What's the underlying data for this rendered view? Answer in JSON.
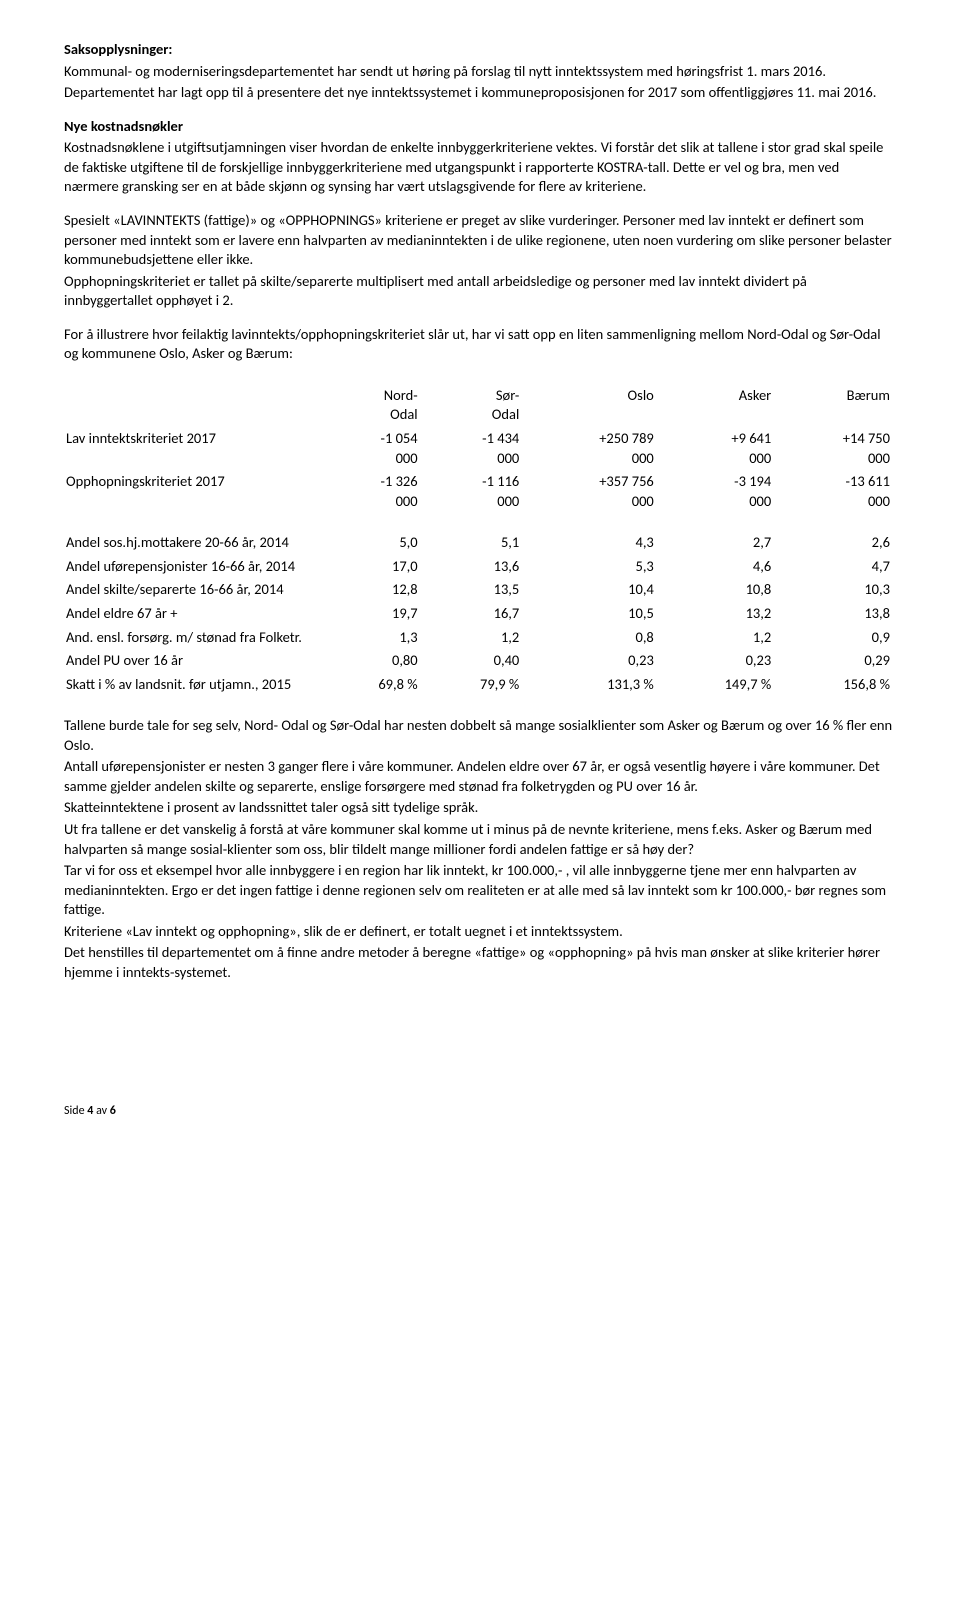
{
  "heading1": "Saksopplysninger:",
  "intro1": "Kommunal- og moderniseringsdepartementet har sendt ut høring på forslag til nytt inntektssystem med høringsfrist 1. mars 2016.",
  "intro2": "Departementet har lagt opp til å presentere det nye inntektssystemet i kommuneproposisjonen for 2017 som offentliggjøres 11. mai 2016.",
  "heading2": "Nye kostnadsnøkler",
  "para2a": "Kostnadsnøklene i utgiftsutjamningen viser hvordan de enkelte innbyggerkriteriene vektes. Vi forstår det slik at tallene i stor grad skal speile de faktiske utgiftene til de forskjellige innbyggerkriteriene med utgangspunkt i rapporterte KOSTRA-tall. Dette er vel og bra, men ved nærmere gransking ser en at både skjønn og synsing har vært utslagsgivende for flere av kriteriene.",
  "para3": "Spesielt «LAVINNTEKTS (fattige)» og «OPPHOPNINGS» kriteriene er preget av slike vurderinger. Personer med lav inntekt er definert som personer med inntekt som er lavere enn halvparten av medianinntekten i de ulike regionene, uten noen vurdering om slike personer belaster kommunebudsjettene eller ikke.",
  "para3b": "Opphopningskriteriet er tallet på skilte/separerte multiplisert med antall arbeidsledige og personer med lav inntekt dividert på innbyggertallet opphøyet i 2.",
  "para4": "For å illustrere hvor feilaktig lavinntekts/opphopningskriteriet slår ut, har vi satt opp en liten sammenligning mellom Nord-Odal og Sør-Odal og kommunene Oslo, Asker og Bærum:",
  "table": {
    "columns": [
      "",
      "Nord-\nOdal",
      "Sør-\nOdal",
      "Oslo",
      "Asker",
      "Bærum"
    ],
    "rows_top": [
      {
        "label": "Lav inntektskriteriet 2017",
        "vals": [
          "-1 054\n000",
          "-1 434\n000",
          "+250 789\n000",
          "+9 641\n000",
          "+14 750\n000"
        ]
      },
      {
        "label": "Opphopningskriteriet 2017",
        "vals": [
          "-1 326\n000",
          "-1 116\n000",
          "+357 756\n000",
          "-3 194\n000",
          "-13 611\n000"
        ]
      }
    ],
    "rows_bottom": [
      {
        "label": "Andel sos.hj.mottakere 20-66 år, 2014",
        "vals": [
          "5,0",
          "5,1",
          "4,3",
          "2,7",
          "2,6"
        ]
      },
      {
        "label": "Andel uførepensjonister 16-66 år, 2014",
        "vals": [
          "17,0",
          "13,6",
          "5,3",
          "4,6",
          "4,7"
        ]
      },
      {
        "label": "Andel skilte/separerte 16-66 år, 2014",
        "vals": [
          "12,8",
          "13,5",
          "10,4",
          "10,8",
          "10,3"
        ]
      },
      {
        "label": "Andel eldre 67 år +",
        "vals": [
          "19,7",
          "16,7",
          "10,5",
          "13,2",
          "13,8"
        ]
      },
      {
        "label": "And. ensl. forsørg. m/ stønad fra Folketr.",
        "vals": [
          "1,3",
          "1,2",
          "0,8",
          "1,2",
          "0,9"
        ]
      },
      {
        "label": "Andel PU over 16 år",
        "vals": [
          "0,80",
          "0,40",
          "0,23",
          "0,23",
          "0,29"
        ]
      },
      {
        "label": "Skatt i % av landsnit. før utjamn., 2015",
        "vals": [
          "69,8 %",
          "79,9 %",
          "131,3 %",
          "149,7 %",
          "156,8 %"
        ]
      }
    ]
  },
  "para5a": "Tallene burde tale for seg selv, Nord- Odal og Sør-Odal har nesten dobbelt så mange sosialklienter som Asker og Bærum og over 16 % fler enn Oslo.",
  "para5b": "Antall uførepensjonister er nesten 3 ganger flere i våre kommuner. Andelen eldre over 67 år, er også vesentlig høyere i våre kommuner. Det samme gjelder andelen skilte og separerte, enslige forsørgere med stønad fra folketrygden og PU over 16 år.",
  "para5c": "Skatteinntektene i prosent av landssnittet taler også sitt tydelige språk.",
  "para5d": "Ut fra tallene er det vanskelig å forstå at våre kommuner skal komme ut i minus på de nevnte kriteriene, mens f.eks. Asker og Bærum med halvparten så mange sosial-klienter som oss, blir tildelt mange millioner fordi andelen fattige er så høy der?",
  "para5e": "Tar vi for oss et eksempel hvor alle innbyggere i en region har lik inntekt, kr 100.000,- , vil alle innbyggerne tjene mer enn halvparten av medianinntekten. Ergo er det ingen fattige i denne regionen selv om realiteten er at alle med så lav inntekt som kr 100.000,- bør regnes som fattige.",
  "para5f": "Kriteriene «Lav inntekt og opphopning», slik de er definert, er totalt uegnet i et inntektssystem.",
  "para5g": "Det henstilles til departementet om å finne andre metoder å beregne «fattige» og «opphopning» på hvis man ønsker at slike kriterier hører hjemme i inntekts-systemet.",
  "footer_side": "Side ",
  "footer_page": "4",
  "footer_av": " av ",
  "footer_total": "6"
}
